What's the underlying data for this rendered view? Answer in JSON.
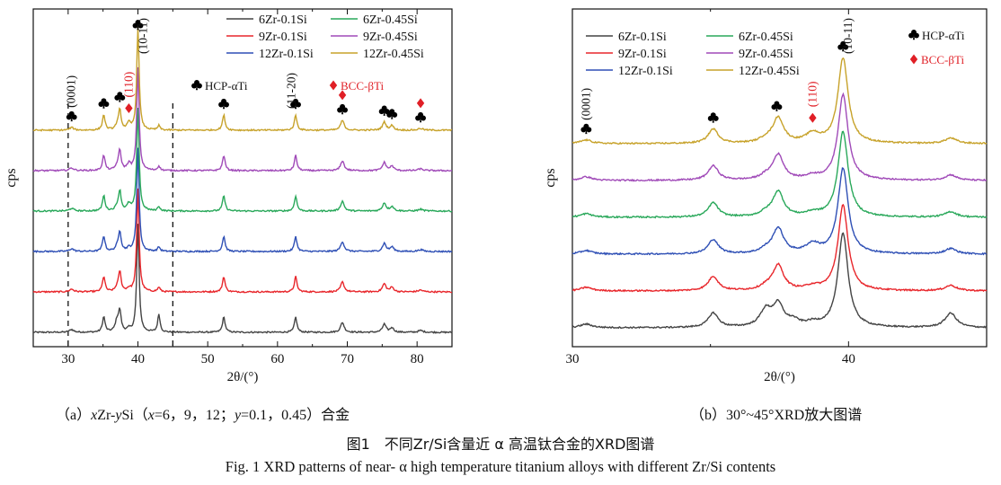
{
  "figure": {
    "caption_cn": "图1　不同Zr/Si含量近 α 高温钛合金的XRD图谱",
    "caption_en": "Fig. 1 XRD patterns of near- α  high temperature titanium alloys with different Zr/Si contents"
  },
  "colors": {
    "6Zr-0.1Si": "#444444",
    "9Zr-0.1Si": "#e8262b",
    "12Zr-0.1Si": "#2e4fb5",
    "6Zr-0.45Si": "#29a85a",
    "9Zr-0.45Si": "#a04ab8",
    "12Zr-0.45Si": "#c7a22a",
    "club": "#000000",
    "diamond": "#e01f26"
  },
  "chart_data": [
    {
      "id": "a",
      "type": "line",
      "subcaption": "（a）xZr-ySi（x=6，9，12；y=0.1，0.45）合金",
      "subcaption_parts": [
        "（a）",
        "x",
        "Zr-",
        "y",
        "Si（",
        "x",
        "=6，9，12；",
        "y",
        "=0.1，0.45）合金"
      ],
      "xlabel": "2θ/(°)",
      "ylabel": "cps",
      "xlim": [
        25,
        85
      ],
      "xticks": [
        30,
        40,
        50,
        60,
        70,
        80
      ],
      "dashed_lines_x": [
        30,
        45
      ],
      "series_order_bottom_to_top": [
        "6Zr-0.1Si",
        "9Zr-0.1Si",
        "12Zr-0.1Si",
        "6Zr-0.45Si",
        "9Zr-0.45Si",
        "12Zr-0.45Si"
      ],
      "legend": [
        "6Zr-0.1Si",
        "6Zr-0.45Si",
        "9Zr-0.1Si",
        "9Zr-0.45Si",
        "12Zr-0.1Si",
        "12Zr-0.45Si"
      ],
      "phase_legend": {
        "hcp": "HCP-αTi",
        "bcc": "BCC-βTi"
      },
      "peaks_hcp": [
        30.5,
        35.1,
        37.4,
        40.0,
        52.3,
        62.6,
        69.3,
        75.3,
        76.4,
        80.5
      ],
      "peaks_bcc": [
        38.7,
        69.3,
        80.5
      ],
      "peak_labels": [
        {
          "x": 30.5,
          "text": "(0001)",
          "color": "black"
        },
        {
          "x": 38.7,
          "text": "(110)",
          "color": "red"
        },
        {
          "x": 40.0,
          "text": "(10-11)",
          "color": "black"
        },
        {
          "x": 62.0,
          "text": "(11-20)",
          "color": "black"
        }
      ]
    },
    {
      "id": "b",
      "type": "line",
      "subcaption": "（b）30°~45°XRD放大图谱",
      "xlabel": "2θ/(°)",
      "ylabel": "cps",
      "xlim": [
        30,
        45
      ],
      "xticks": [
        30,
        40
      ],
      "series_order_bottom_to_top": [
        "6Zr-0.1Si",
        "9Zr-0.1Si",
        "12Zr-0.1Si",
        "6Zr-0.45Si",
        "9Zr-0.45Si",
        "12Zr-0.45Si"
      ],
      "legend": [
        "6Zr-0.1Si",
        "6Zr-0.45Si",
        "9Zr-0.1Si",
        "9Zr-0.45Si",
        "12Zr-0.1Si",
        "12Zr-0.45Si"
      ],
      "phase_legend": {
        "hcp": "HCP-αTi",
        "bcc": "BCC-βTi"
      },
      "peaks_hcp": [
        30.5,
        35.1,
        37.4,
        39.8
      ],
      "peaks_bcc": [
        38.7
      ],
      "peak_labels": [
        {
          "x": 30.5,
          "text": "(0001)",
          "color": "black"
        },
        {
          "x": 38.7,
          "text": "(110)",
          "color": "red"
        },
        {
          "x": 39.8,
          "text": "(10-11)",
          "color": "black"
        }
      ]
    }
  ]
}
